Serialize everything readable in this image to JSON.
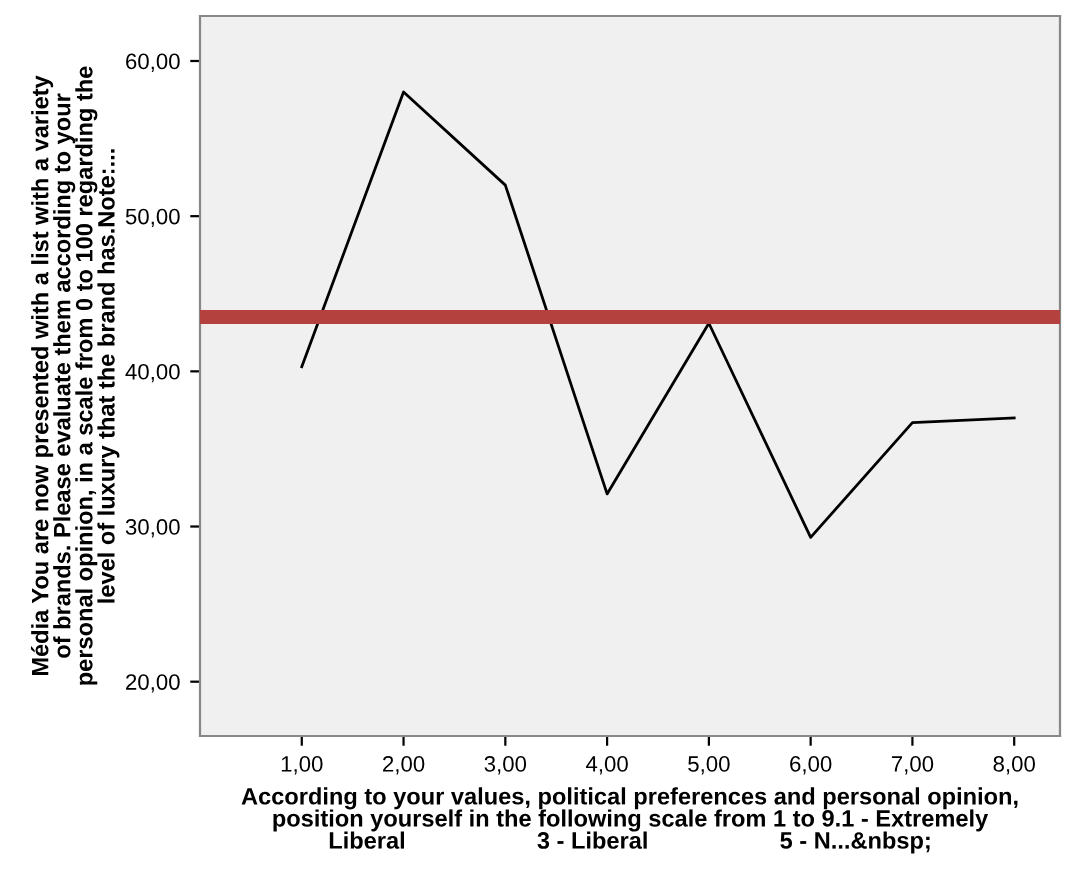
{
  "chart_data": {
    "type": "line",
    "xlabel": "According to your values, political preferences and personal opinion,\nposition yourself in the following scale from 1 to 9.1 - Extremely\nLiberal                    3 - Liberal                    5 - N...&nbsp;",
    "ylabel": "Média You are now presented with a list with a variety\nof brands. Please evaluate them according to your\npersonal opinion, in a scale from 0 to 100 regarding the\nlevel of luxury that the brand has.Note:...",
    "x": [
      1,
      2,
      3,
      4,
      5,
      6,
      7,
      8
    ],
    "series": [
      {
        "color": "#000000",
        "values": [
          40.3,
          58.0,
          52.0,
          32.1,
          43.1,
          29.3,
          36.7,
          37.0
        ]
      }
    ],
    "xlim": [
      0,
      8.45
    ],
    "ylim": [
      16.5,
      62.9
    ],
    "xticks": [
      {
        "value": 1,
        "label": "1,00"
      },
      {
        "value": 2,
        "label": "2,00"
      },
      {
        "value": 3,
        "label": "3,00"
      },
      {
        "value": 4,
        "label": "4,00"
      },
      {
        "value": 5,
        "label": "5,00"
      },
      {
        "value": 6,
        "label": "6,00"
      },
      {
        "value": 7,
        "label": "7,00"
      },
      {
        "value": 8,
        "label": "8,00"
      }
    ],
    "yticks": [
      {
        "value": 20,
        "label": "20,00"
      },
      {
        "value": 30,
        "label": "30,00"
      },
      {
        "value": 40,
        "label": "40,00"
      },
      {
        "value": 50,
        "label": "50,00"
      },
      {
        "value": 60,
        "label": "60,00"
      }
    ],
    "ref_lines": [
      {
        "axis": "y",
        "value": 43.5,
        "color": "#b5413f"
      }
    ],
    "grid": false,
    "legend": false,
    "marker": "none",
    "line_style": "solid"
  }
}
